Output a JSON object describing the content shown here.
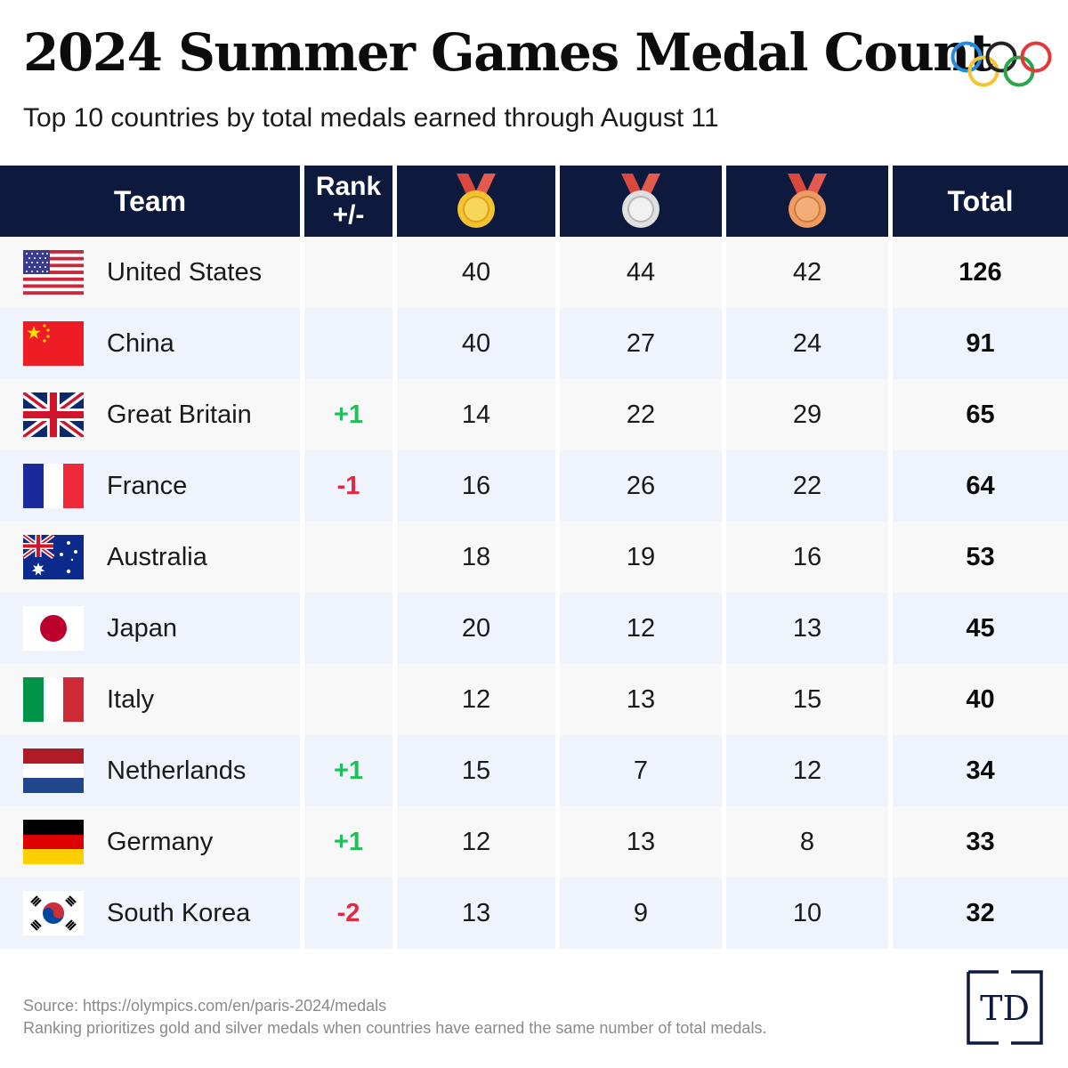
{
  "title": "2024 Summer Games Medal Count",
  "subtitle": "Top 10 countries by total medals earned through August 11",
  "header": {
    "team": "Team",
    "rank_line1": "Rank",
    "rank_line2": "+/-",
    "gold_icon": "gold-medal-icon",
    "silver_icon": "silver-medal-icon",
    "bronze_icon": "bronze-medal-icon",
    "total": "Total"
  },
  "colors": {
    "header_bg": "#0d1a3e",
    "gold": "#f2c230",
    "silver": "#e0e0e0",
    "bronze": "#ef9c62",
    "ribbon": "#d9473d",
    "positive": "#1fbf5a",
    "negative": "#e22a3e"
  },
  "chart_data": {
    "type": "table",
    "columns": [
      "Team",
      "Rank +/-",
      "Gold",
      "Silver",
      "Bronze",
      "Total"
    ],
    "rows": [
      {
        "team": "United States",
        "flag": "flag-usa",
        "rank_change": "",
        "gold": 40,
        "silver": 44,
        "bronze": 42,
        "total": 126
      },
      {
        "team": "China",
        "flag": "flag-china",
        "rank_change": "",
        "gold": 40,
        "silver": 27,
        "bronze": 24,
        "total": 91
      },
      {
        "team": "Great Britain",
        "flag": "flag-uk",
        "rank_change": "+1",
        "gold": 14,
        "silver": 22,
        "bronze": 29,
        "total": 65
      },
      {
        "team": "France",
        "flag": "flag-france",
        "rank_change": "-1",
        "gold": 16,
        "silver": 26,
        "bronze": 22,
        "total": 64
      },
      {
        "team": "Australia",
        "flag": "flag-australia",
        "rank_change": "",
        "gold": 18,
        "silver": 19,
        "bronze": 16,
        "total": 53
      },
      {
        "team": "Japan",
        "flag": "flag-japan",
        "rank_change": "",
        "gold": 20,
        "silver": 12,
        "bronze": 13,
        "total": 45
      },
      {
        "team": "Italy",
        "flag": "flag-italy",
        "rank_change": "",
        "gold": 12,
        "silver": 13,
        "bronze": 15,
        "total": 40
      },
      {
        "team": "Netherlands",
        "flag": "flag-netherlands",
        "rank_change": "+1",
        "gold": 15,
        "silver": 7,
        "bronze": 12,
        "total": 34
      },
      {
        "team": "Germany",
        "flag": "flag-germany",
        "rank_change": "+1",
        "gold": 12,
        "silver": 13,
        "bronze": 8,
        "total": 33
      },
      {
        "team": "South Korea",
        "flag": "flag-south-korea",
        "rank_change": "-2",
        "gold": 13,
        "silver": 9,
        "bronze": 10,
        "total": 32
      }
    ]
  },
  "footer": {
    "source": "Source: https://olympics.com/en/paris-2024/medals",
    "note": "Ranking prioritizes gold and silver medals when countries have earned the same number of total medals."
  },
  "logo_text": "TD"
}
